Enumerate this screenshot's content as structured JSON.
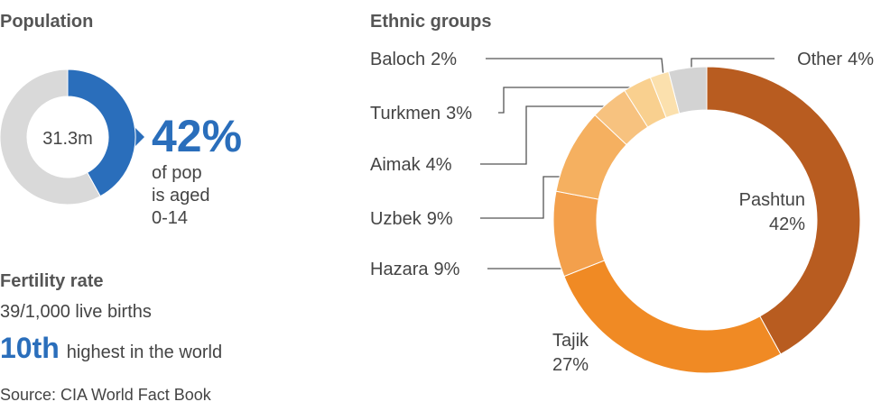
{
  "chart_data": [
    {
      "type": "donut",
      "title": "Population",
      "center_label": "31.3m",
      "values": [
        42,
        58
      ],
      "value_labels": [
        "42%",
        null
      ],
      "colors": [
        "#2a6ebb",
        "#d9d9d9"
      ],
      "annotation": [
        "of pop",
        "is aged",
        "0-14"
      ]
    },
    {
      "type": "donut",
      "title": "Ethnic groups",
      "categories": [
        "Pashtun",
        "Tajik",
        "Hazara",
        "Uzbek",
        "Aimak",
        "Turkmen",
        "Baloch",
        "Other"
      ],
      "values": [
        42,
        27,
        9,
        9,
        4,
        3,
        2,
        4
      ],
      "value_labels": [
        "42%",
        "27%",
        "9%",
        "9%",
        "4%",
        "3%",
        "2%",
        "4%"
      ],
      "colors": [
        "#b85c20",
        "#f08a24",
        "#f3a04c",
        "#f5b060",
        "#f7c27f",
        "#f9d08f",
        "#fbe0ad",
        "#d3d3d3"
      ]
    }
  ],
  "fertility": {
    "title": "Fertility rate",
    "rate": "39/1,000 live births",
    "rank": "10th",
    "rank_text": "highest in the world"
  },
  "source": "Source: CIA World Fact Book"
}
